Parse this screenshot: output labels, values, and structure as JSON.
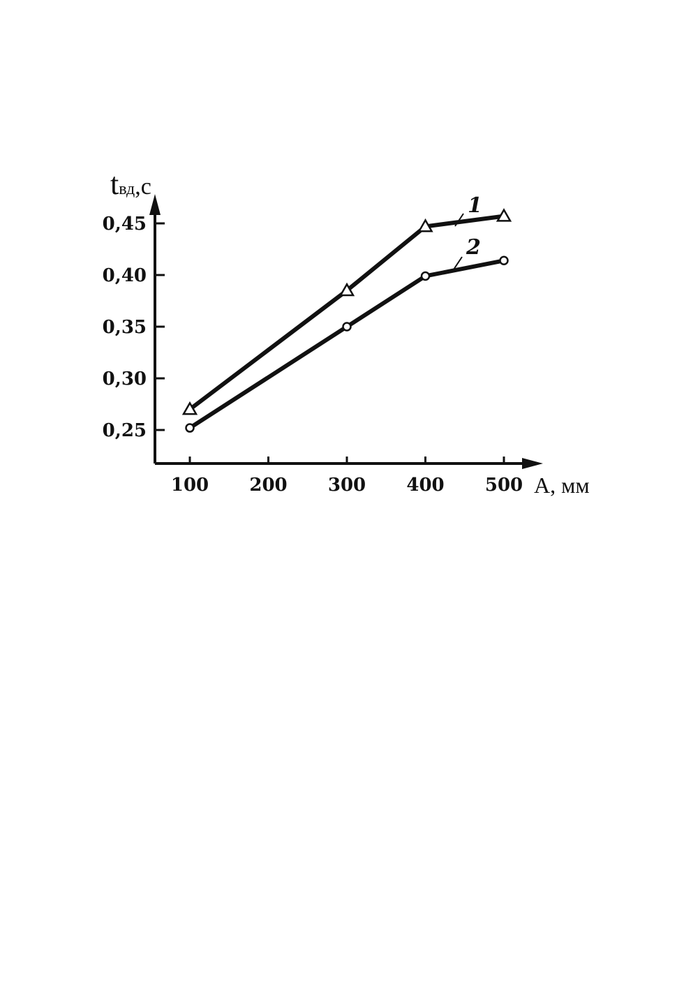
{
  "chart_data": {
    "type": "line",
    "title": "",
    "xlabel": "А, мм",
    "ylabel_main": "t",
    "ylabel_sub": "вд",
    "ylabel_unit": ",с",
    "x_ticks": [
      100,
      200,
      300,
      400,
      500
    ],
    "x_tick_labels": [
      "100",
      "200",
      "300",
      "400",
      "500"
    ],
    "y_ticks": [
      0.25,
      0.3,
      0.35,
      0.4,
      0.45
    ],
    "y_tick_labels": [
      "0,25",
      "0,30",
      "0,35",
      "0,40",
      "0,45"
    ],
    "xlim": [
      55,
      555
    ],
    "ylim": [
      0.217,
      0.49
    ],
    "grid": false,
    "legend": "none",
    "series": [
      {
        "name": "1",
        "marker": "triangle",
        "x": [
          100,
          300,
          400,
          500
        ],
        "y": [
          0.27,
          0.385,
          0.447,
          0.457
        ]
      },
      {
        "name": "2",
        "marker": "circle",
        "x": [
          100,
          300,
          400,
          500
        ],
        "y": [
          0.252,
          0.35,
          0.399,
          0.414
        ]
      }
    ],
    "colors": {
      "line": "#111111",
      "background": "#ffffff"
    }
  }
}
